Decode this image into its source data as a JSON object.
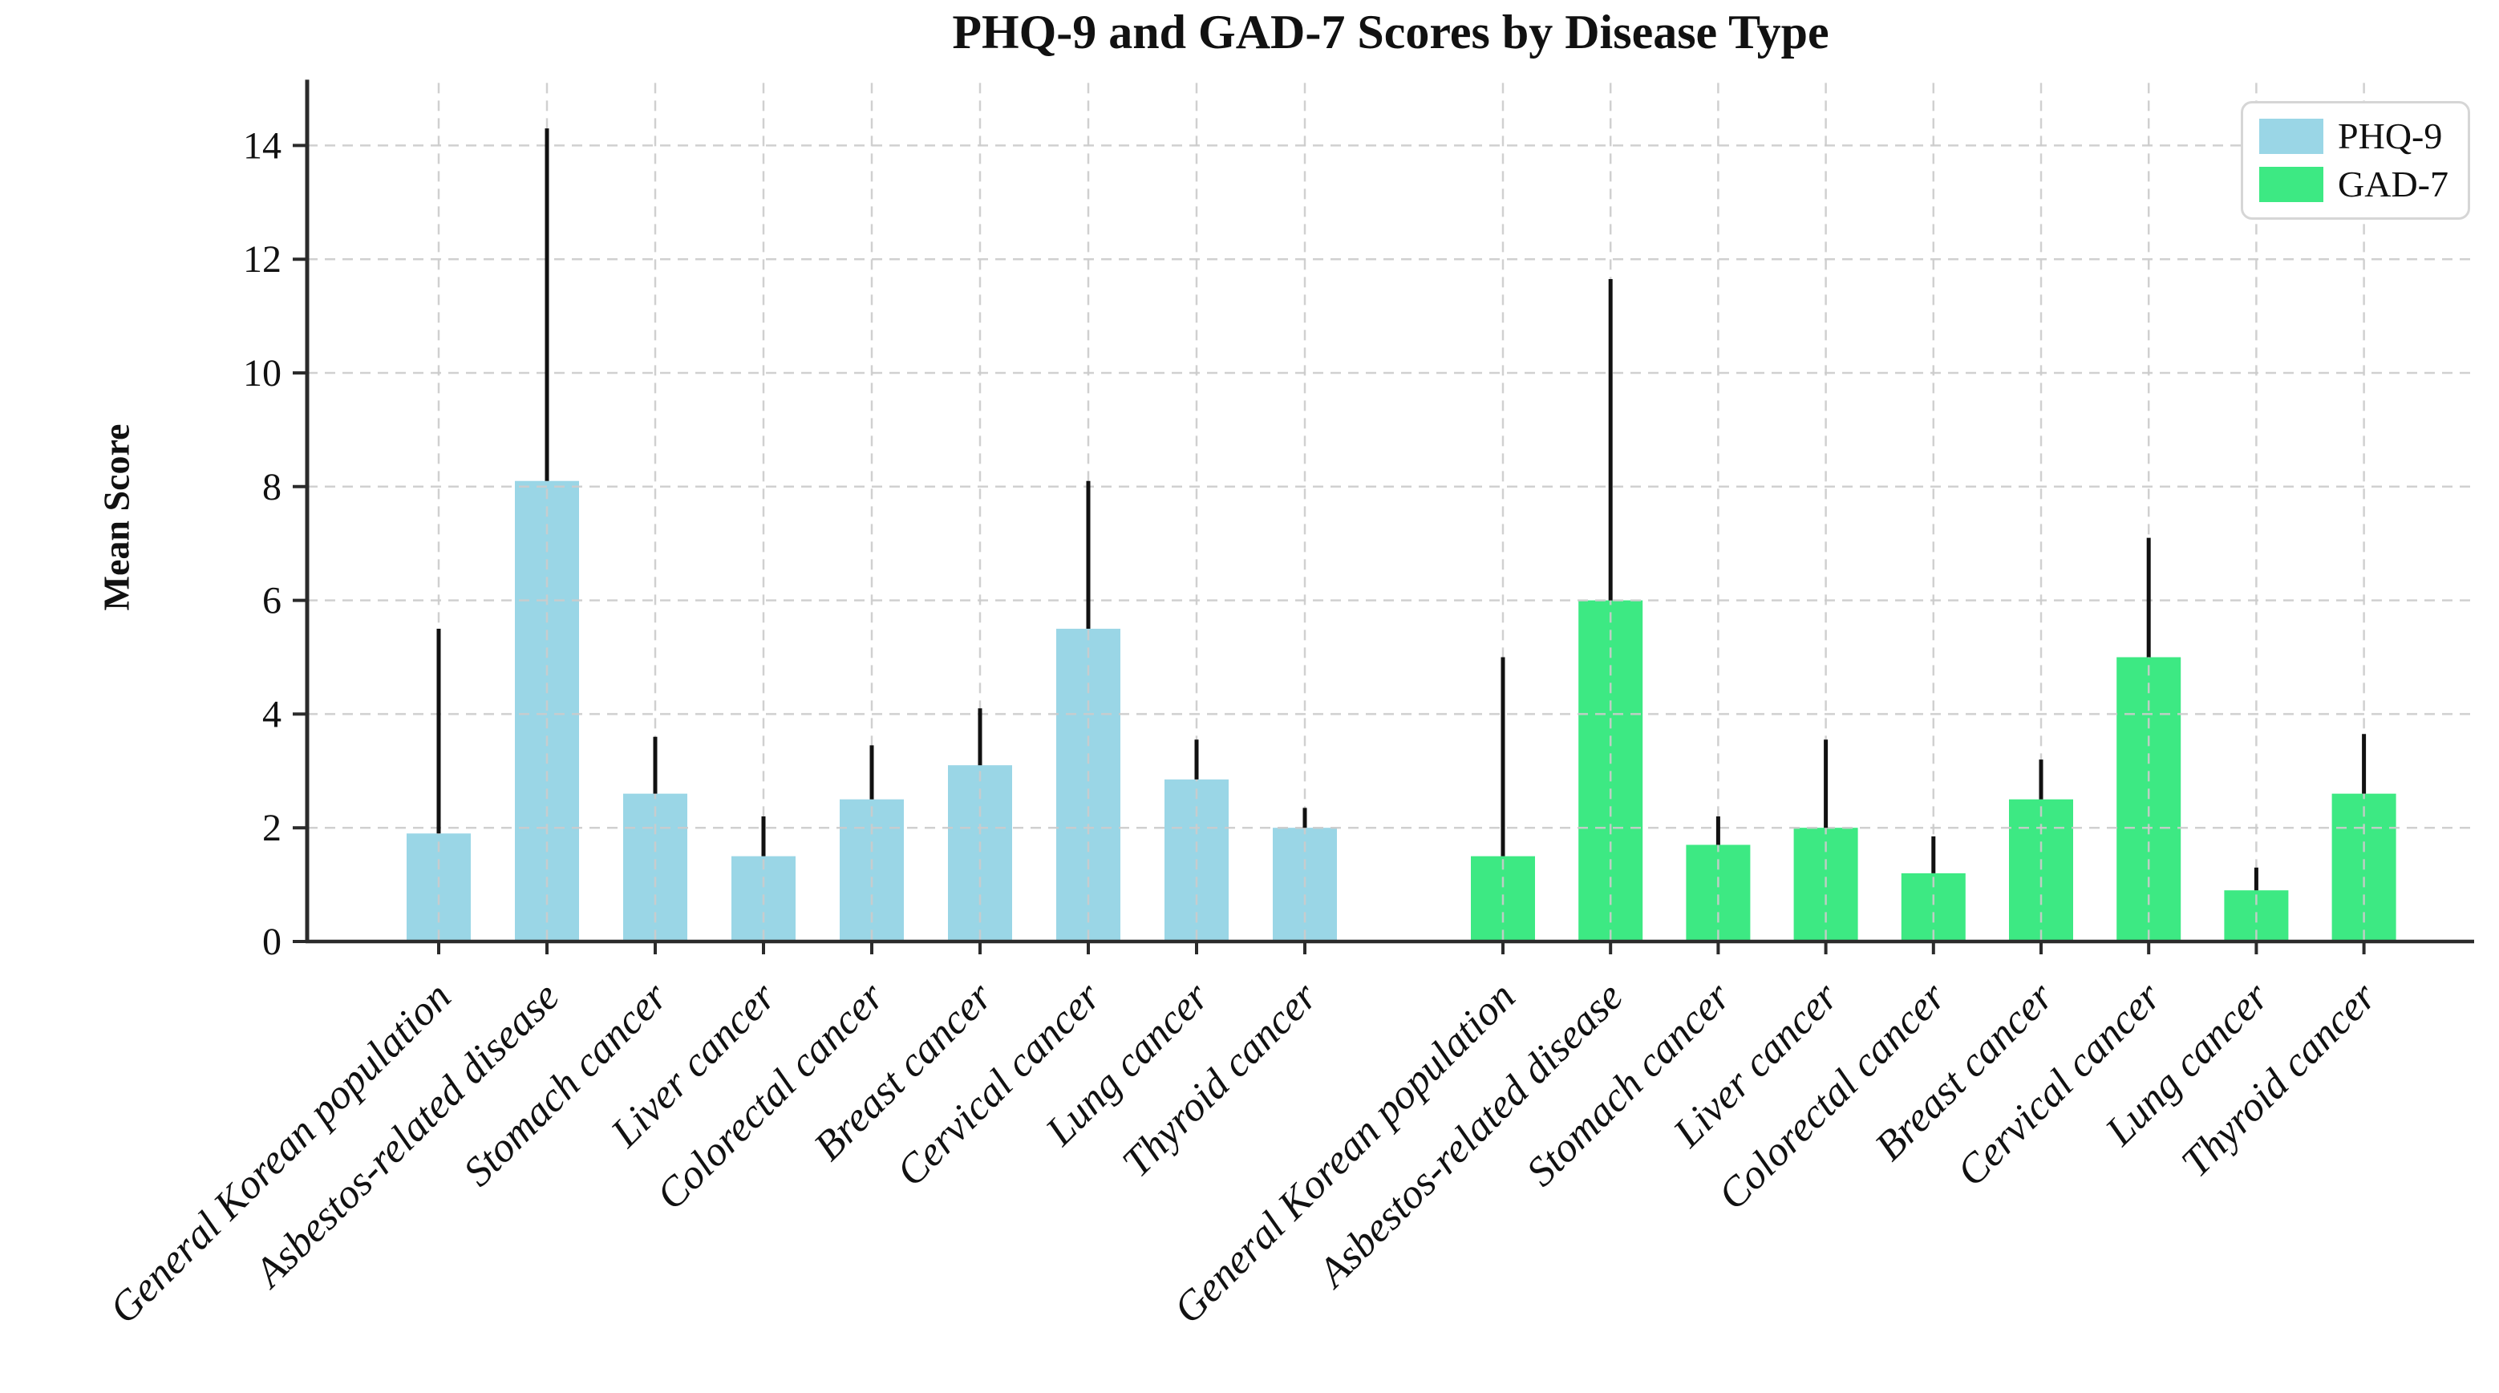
{
  "title": "PHQ-9 and GAD-7 Scores by Disease Type",
  "ylabel": "Mean Score",
  "legend": {
    "position": "upper right",
    "items": [
      {
        "label": "PHQ-9",
        "color": "#9ad6e6"
      },
      {
        "label": "GAD-7",
        "color": "#3de983"
      }
    ]
  },
  "chart_data": {
    "type": "bar",
    "title": "PHQ-9 and GAD-7 Scores by Disease Type",
    "xlabel": "",
    "ylabel": "Mean Score",
    "categories": [
      "General Korean population",
      "Asbestos-related disease",
      "Stomach cancer",
      "Liver cancer",
      "Colorectal cancer",
      "Breast cancer",
      "Cervical cancer",
      "Lung cancer",
      "Thyroid cancer"
    ],
    "series": [
      {
        "name": "PHQ-9",
        "color": "#9ad6e6",
        "values": [
          1.9,
          8.1,
          2.6,
          1.5,
          2.5,
          3.1,
          5.5,
          2.85,
          2.0
        ],
        "error_bar_tops": [
          5.5,
          14.3,
          3.6,
          2.2,
          3.45,
          4.1,
          8.1,
          3.55,
          2.35
        ]
      },
      {
        "name": "GAD-7",
        "color": "#3de983",
        "values": [
          1.5,
          6.0,
          1.7,
          2.0,
          1.2,
          2.5,
          5.0,
          0.9,
          2.6
        ],
        "error_bar_tops": [
          5.0,
          11.65,
          2.2,
          3.55,
          1.85,
          3.2,
          7.1,
          1.3,
          3.65
        ]
      }
    ],
    "error_bars": "upper only, no caps",
    "yticks": [
      0,
      2,
      4,
      6,
      8,
      10,
      12,
      14
    ],
    "ylim": [
      0,
      15.1
    ],
    "grid": "dashed horizontal and vertical gridlines, drawn over bars",
    "legend_position": "upper right",
    "style": {
      "grid_color": "#cccccc",
      "spine_color": "#2b2b2b",
      "error_bar_color": "#111111",
      "tick_label_color": "#111111",
      "background": "#ffffff",
      "x_labels_rotation_deg": 45,
      "x_labels_style": "italic"
    }
  }
}
